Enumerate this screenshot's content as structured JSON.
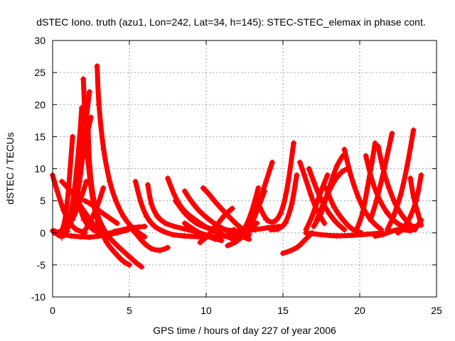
{
  "chart_data": {
    "type": "line",
    "title": "dSTEC Iono. truth (azu1, Lon=242, Lat=34, h=145): STEC-STEC_elemax in phase cont.",
    "xlabel": "GPS time / hours of day 227 of year 2006",
    "ylabel": "dSTEC  / TECUs",
    "xlim": [
      0,
      25
    ],
    "ylim": [
      -10,
      30
    ],
    "xticks": [
      0,
      5,
      10,
      15,
      20,
      25
    ],
    "yticks": [
      -10,
      -5,
      0,
      5,
      10,
      15,
      20,
      25,
      30
    ],
    "grid": true,
    "marker": "plus",
    "color": "#ff0000",
    "series": [
      {
        "x": [
          0.0,
          0.3,
          0.7,
          1.1,
          1.5,
          1.9,
          2.1
        ],
        "y": [
          9,
          6.5,
          3.5,
          1.5,
          0.5,
          0.2,
          0
        ]
      },
      {
        "x": [
          0.0,
          0.5,
          0.9,
          1.3
        ],
        "y": [
          0.3,
          -0.5,
          2.5,
          15
        ]
      },
      {
        "x": [
          0.1,
          0.6,
          1.0,
          1.4,
          1.7,
          1.9
        ],
        "y": [
          0.2,
          -0.8,
          0.2,
          6,
          13,
          19.5
        ]
      },
      {
        "x": [
          0.1,
          0.6,
          1.2,
          1.8,
          2.1,
          2.4
        ],
        "y": [
          0,
          -0.3,
          1.5,
          8,
          16,
          22
        ]
      },
      {
        "x": [
          0.2,
          0.8,
          1.3,
          1.8,
          2.2,
          2.5
        ],
        "y": [
          0,
          0.5,
          3,
          9.5,
          15,
          18
        ]
      },
      {
        "x": [
          2.0,
          2.1,
          2.3,
          2.6,
          3.0,
          3.5,
          4.0,
          4.6,
          5.0
        ],
        "y": [
          24,
          18,
          11,
          5,
          1,
          -1.5,
          -3,
          -4.5,
          -5
        ]
      },
      {
        "x": [
          2.3,
          2.4,
          2.7,
          3.1,
          3.6,
          4.2,
          4.9,
          5.5,
          5.8
        ],
        "y": [
          17,
          10,
          4.5,
          1.5,
          -0.5,
          -2,
          -3.5,
          -4.8,
          -5.3
        ]
      },
      {
        "x": [
          1.7,
          2.0,
          2.6,
          3.2,
          3.8,
          4.3,
          4.8
        ],
        "y": [
          5,
          2,
          0.5,
          -0.2,
          0,
          0.2,
          0.4
        ]
      },
      {
        "x": [
          2.1,
          2.5,
          3.0,
          3.6,
          4.2
        ],
        "y": [
          5,
          4.5,
          3.5,
          2.5,
          1.5
        ]
      },
      {
        "x": [
          2.9,
          3.0,
          3.3,
          3.7,
          4.1,
          4.6,
          5.1,
          5.6,
          6.0
        ],
        "y": [
          26,
          20,
          13,
          8,
          5,
          2.5,
          1,
          0,
          -0.6
        ]
      },
      {
        "x": [
          0.1,
          0.6,
          1.2,
          1.8,
          2.4,
          3.0,
          3.6,
          4.2,
          4.8,
          5.2
        ],
        "y": [
          0.3,
          -0.2,
          -0.5,
          -0.6,
          -0.7,
          -0.5,
          -0.3,
          0,
          0.4,
          0.7
        ]
      },
      {
        "x": [
          2.0,
          2.4,
          2.9,
          3.3
        ],
        "y": [
          0,
          1.5,
          4,
          7
        ]
      },
      {
        "x": [
          0.8,
          1.3,
          1.8,
          2.2
        ],
        "y": [
          0.5,
          2,
          5,
          8
        ]
      },
      {
        "x": [
          4.0,
          4.6,
          5.1,
          5.6,
          6.0
        ],
        "y": [
          0.2,
          0.5,
          0.8,
          0.9,
          1
        ]
      },
      {
        "x": [
          5.4,
          5.7,
          6.1,
          6.6,
          7.2,
          7.8,
          8.6,
          9.5,
          10.4,
          11.2,
          11.6
        ],
        "y": [
          8,
          5,
          2.5,
          1,
          0.2,
          -0.3,
          -0.5,
          -0.6,
          -0.6,
          -0.5,
          -0.3
        ]
      },
      {
        "x": [
          5.0,
          5.4,
          5.9,
          6.4,
          7.0,
          7.5
        ],
        "y": [
          1,
          0,
          -1.5,
          -2.5,
          -2.8,
          -2.3
        ]
      },
      {
        "x": [
          6.2,
          6.4,
          6.8,
          7.3,
          7.9,
          8.6,
          9.3,
          10.0,
          10.6
        ],
        "y": [
          7.5,
          4.5,
          2.5,
          1.5,
          1,
          0.6,
          0.2,
          -0.3,
          -1
        ]
      },
      {
        "x": [
          7.5,
          7.9,
          8.4,
          9.0,
          9.6,
          10.2,
          10.8,
          11.4,
          12.0
        ],
        "y": [
          8.5,
          6,
          3.8,
          2.5,
          1.5,
          0.6,
          0,
          -0.6,
          -1.3
        ]
      },
      {
        "x": [
          8.6,
          9.0,
          9.5,
          10.1,
          10.8,
          11.5,
          12.2,
          12.8
        ],
        "y": [
          6.5,
          5,
          3.5,
          2.2,
          1,
          0.2,
          -0.5,
          -1
        ]
      },
      {
        "x": [
          9.8,
          10.2,
          10.7,
          11.3,
          11.9,
          12.4,
          12.8
        ],
        "y": [
          7,
          6,
          4.5,
          3,
          1.5,
          0.5,
          -0.3
        ]
      },
      {
        "x": [
          8.0,
          8.6,
          9.3,
          10.0,
          10.6
        ],
        "y": [
          5,
          3,
          1.5,
          0.8,
          0.5
        ]
      },
      {
        "x": [
          8.6,
          9.2,
          9.8,
          10.4,
          11.0
        ],
        "y": [
          1.5,
          0.5,
          -0.3,
          -0.8,
          -1.2
        ]
      },
      {
        "x": [
          9.6,
          10.1,
          10.7,
          11.2,
          11.7
        ],
        "y": [
          -1.5,
          -0.5,
          1.2,
          2.8,
          3.8
        ]
      },
      {
        "x": [
          11.4,
          11.9,
          12.4,
          12.9,
          13.3
        ],
        "y": [
          -2,
          -1.5,
          -0.5,
          0.5,
          1.5
        ]
      },
      {
        "x": [
          12.3,
          12.6,
          13.0,
          13.5,
          13.9,
          14.3
        ],
        "y": [
          0,
          0.5,
          2,
          5,
          8,
          11
        ]
      },
      {
        "x": [
          11.2,
          11.7,
          12.2,
          12.6,
          13.0,
          13.4
        ],
        "y": [
          -0.5,
          -0.8,
          -0.3,
          1,
          3.5,
          7
        ]
      },
      {
        "x": [
          11.8,
          12.2,
          12.6,
          13.0,
          13.4,
          13.8
        ],
        "y": [
          0.5,
          -0.5,
          -0.2,
          1.5,
          4,
          6.5
        ]
      },
      {
        "x": [
          10.5,
          11.2,
          11.8,
          12.5,
          13.2,
          14.0,
          14.8
        ],
        "y": [
          0.8,
          0.5,
          0.3,
          0.3,
          0.5,
          0.8,
          1
        ]
      },
      {
        "x": [
          13.5,
          13.9,
          14.4,
          14.9,
          15.3,
          15.7
        ],
        "y": [
          4,
          2,
          1.5,
          3,
          7,
          14
        ]
      },
      {
        "x": [
          14.2,
          14.7,
          15.2,
          15.6,
          15.9
        ],
        "y": [
          0.5,
          0.5,
          1.5,
          4.5,
          9
        ]
      },
      {
        "x": [
          15.0,
          15.5,
          16.0,
          16.4,
          16.9
        ],
        "y": [
          -3.2,
          -2.8,
          -2.2,
          -1.2,
          0
        ]
      },
      {
        "x": [
          16.1,
          16.4,
          16.8,
          17.2,
          17.7
        ],
        "y": [
          11,
          9,
          6,
          3.5,
          1.5
        ]
      },
      {
        "x": [
          16.5,
          16.9,
          17.4,
          17.9
        ],
        "y": [
          0.5,
          2.5,
          6,
          9
        ]
      },
      {
        "x": [
          16.7,
          17.0,
          17.5,
          18.0,
          18.5,
          19.0
        ],
        "y": [
          10,
          8,
          5,
          3,
          1.5,
          0.5
        ]
      },
      {
        "x": [
          17.0,
          17.5,
          18.0,
          18.5,
          18.9
        ],
        "y": [
          1,
          3,
          7,
          10.5,
          12
        ]
      },
      {
        "x": [
          17.2,
          17.7,
          18.3,
          18.8,
          19.2
        ],
        "y": [
          2,
          5,
          8,
          9.5,
          10
        ]
      },
      {
        "x": [
          17.8,
          18.3,
          18.9,
          19.5,
          20.1
        ],
        "y": [
          7,
          4,
          2,
          0.5,
          0
        ]
      },
      {
        "x": [
          19.0,
          19.4,
          19.9,
          20.4,
          20.9,
          21.4
        ],
        "y": [
          13,
          9,
          5.5,
          3,
          1.5,
          0.5
        ]
      },
      {
        "x": [
          19.8,
          20.2,
          20.5,
          20.8,
          21.0
        ],
        "y": [
          0.5,
          3,
          7,
          11,
          14
        ]
      },
      {
        "x": [
          20.4,
          20.8,
          21.3,
          21.8,
          22.4,
          23.0,
          23.6
        ],
        "y": [
          12,
          8,
          5,
          3,
          1.5,
          0.8,
          0.5
        ]
      },
      {
        "x": [
          21.2,
          21.5,
          21.9,
          22.3,
          22.8,
          23.4
        ],
        "y": [
          13.5,
          10,
          7,
          4.5,
          2.5,
          1
        ]
      },
      {
        "x": [
          20.7,
          21.1,
          21.6,
          22.1
        ],
        "y": [
          2,
          5,
          10,
          15.5
        ]
      },
      {
        "x": [
          21.8,
          22.2,
          22.7,
          23.1,
          23.5
        ],
        "y": [
          0.5,
          2.5,
          6,
          10.5,
          16
        ]
      },
      {
        "x": [
          22.5,
          22.9,
          23.3,
          23.7,
          24.0
        ],
        "y": [
          0,
          0.8,
          2.5,
          5,
          9
        ]
      },
      {
        "x": [
          23.3,
          23.5,
          23.8,
          24.0
        ],
        "y": [
          8.5,
          5.5,
          3,
          1.2
        ]
      },
      {
        "x": [
          22.8,
          23.3,
          23.7,
          24.0
        ],
        "y": [
          0.5,
          0.3,
          0.8,
          2
        ]
      },
      {
        "x": [
          21.0,
          21.5,
          22.0,
          22.6,
          23.2,
          23.8
        ],
        "y": [
          -0.5,
          -0.3,
          0.2,
          0.6,
          0.9,
          1.1
        ]
      },
      {
        "x": [
          16.5,
          17.5,
          18.5,
          19.5,
          20.5,
          21.5
        ],
        "y": [
          0,
          -0.3,
          -0.5,
          -0.4,
          -0.2,
          0
        ]
      },
      {
        "x": [
          0.6,
          1.2,
          1.6,
          2.0,
          2.4,
          2.7,
          3.0
        ],
        "y": [
          8,
          6.5,
          5,
          3.5,
          2.2,
          1.2,
          0.5
        ]
      }
    ]
  }
}
